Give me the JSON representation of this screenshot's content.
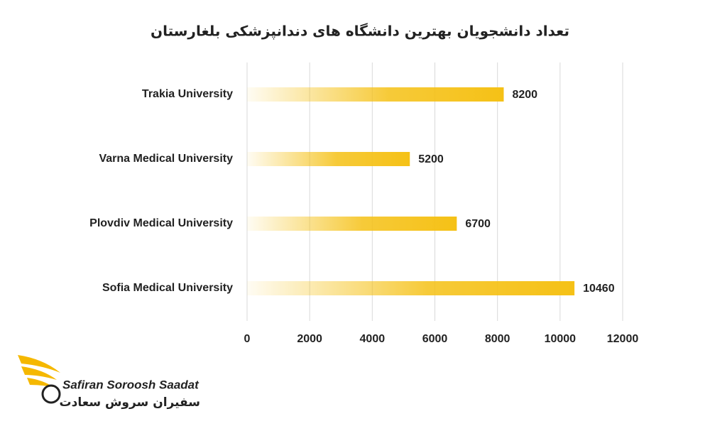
{
  "chart_data": {
    "type": "bar",
    "orientation": "horizontal",
    "title": "تعداد دانشجویان بهترین دانشگاه های دندانپزشکی بلغارستان",
    "categories": [
      "Trakia University",
      "Varna Medical University",
      "Plovdiv Medical University",
      "Sofia Medical University"
    ],
    "values": [
      8200,
      5200,
      6700,
      10460
    ],
    "color": "#f5c116",
    "xlim": [
      0,
      12000
    ],
    "xticks": [
      0,
      2000,
      4000,
      6000,
      8000,
      10000,
      12000
    ],
    "grid": true
  },
  "logo": {
    "name": "Safiran Soroosh Saadat",
    "name_fa": "سفیران سروش سعادت"
  }
}
